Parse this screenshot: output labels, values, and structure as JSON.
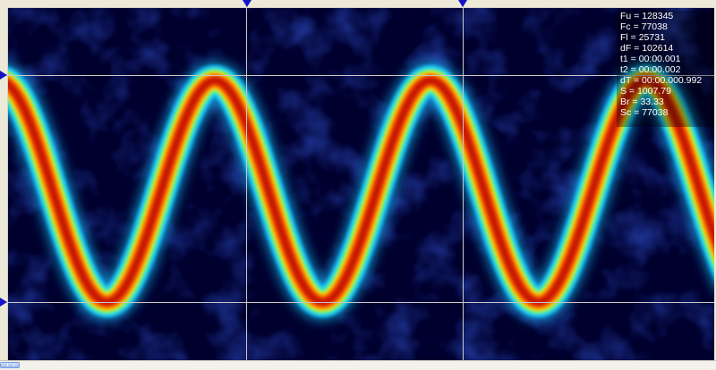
{
  "readout": {
    "fu": "Fu = 128345",
    "fc": "Fc = 77038",
    "fl": "Fl = 25731",
    "df": "dF = 102614",
    "t1": "t1 = 00:00.001",
    "t2": "t2 = 00:00.002",
    "dt": "dT = 00:00.000.992",
    "s": "S = 1007.79",
    "br": "Br = 33.33",
    "sc": "Sc = 77038"
  },
  "colors": {
    "background": "#00002e",
    "cursor": "#c8c8c8",
    "marker": "#1414c8",
    "signal_core": "#c81400",
    "signal_mid": "#ffd800",
    "signal_outer": "#18c8ff",
    "frame": "#ece9d8"
  },
  "icons": {
    "cursor_marker_top": "triangle-down",
    "cursor_marker_left": "triangle-right",
    "scroll_thumb": "grip"
  },
  "spectrogram": {
    "colormap": "jet",
    "signal_shape": "sine"
  }
}
